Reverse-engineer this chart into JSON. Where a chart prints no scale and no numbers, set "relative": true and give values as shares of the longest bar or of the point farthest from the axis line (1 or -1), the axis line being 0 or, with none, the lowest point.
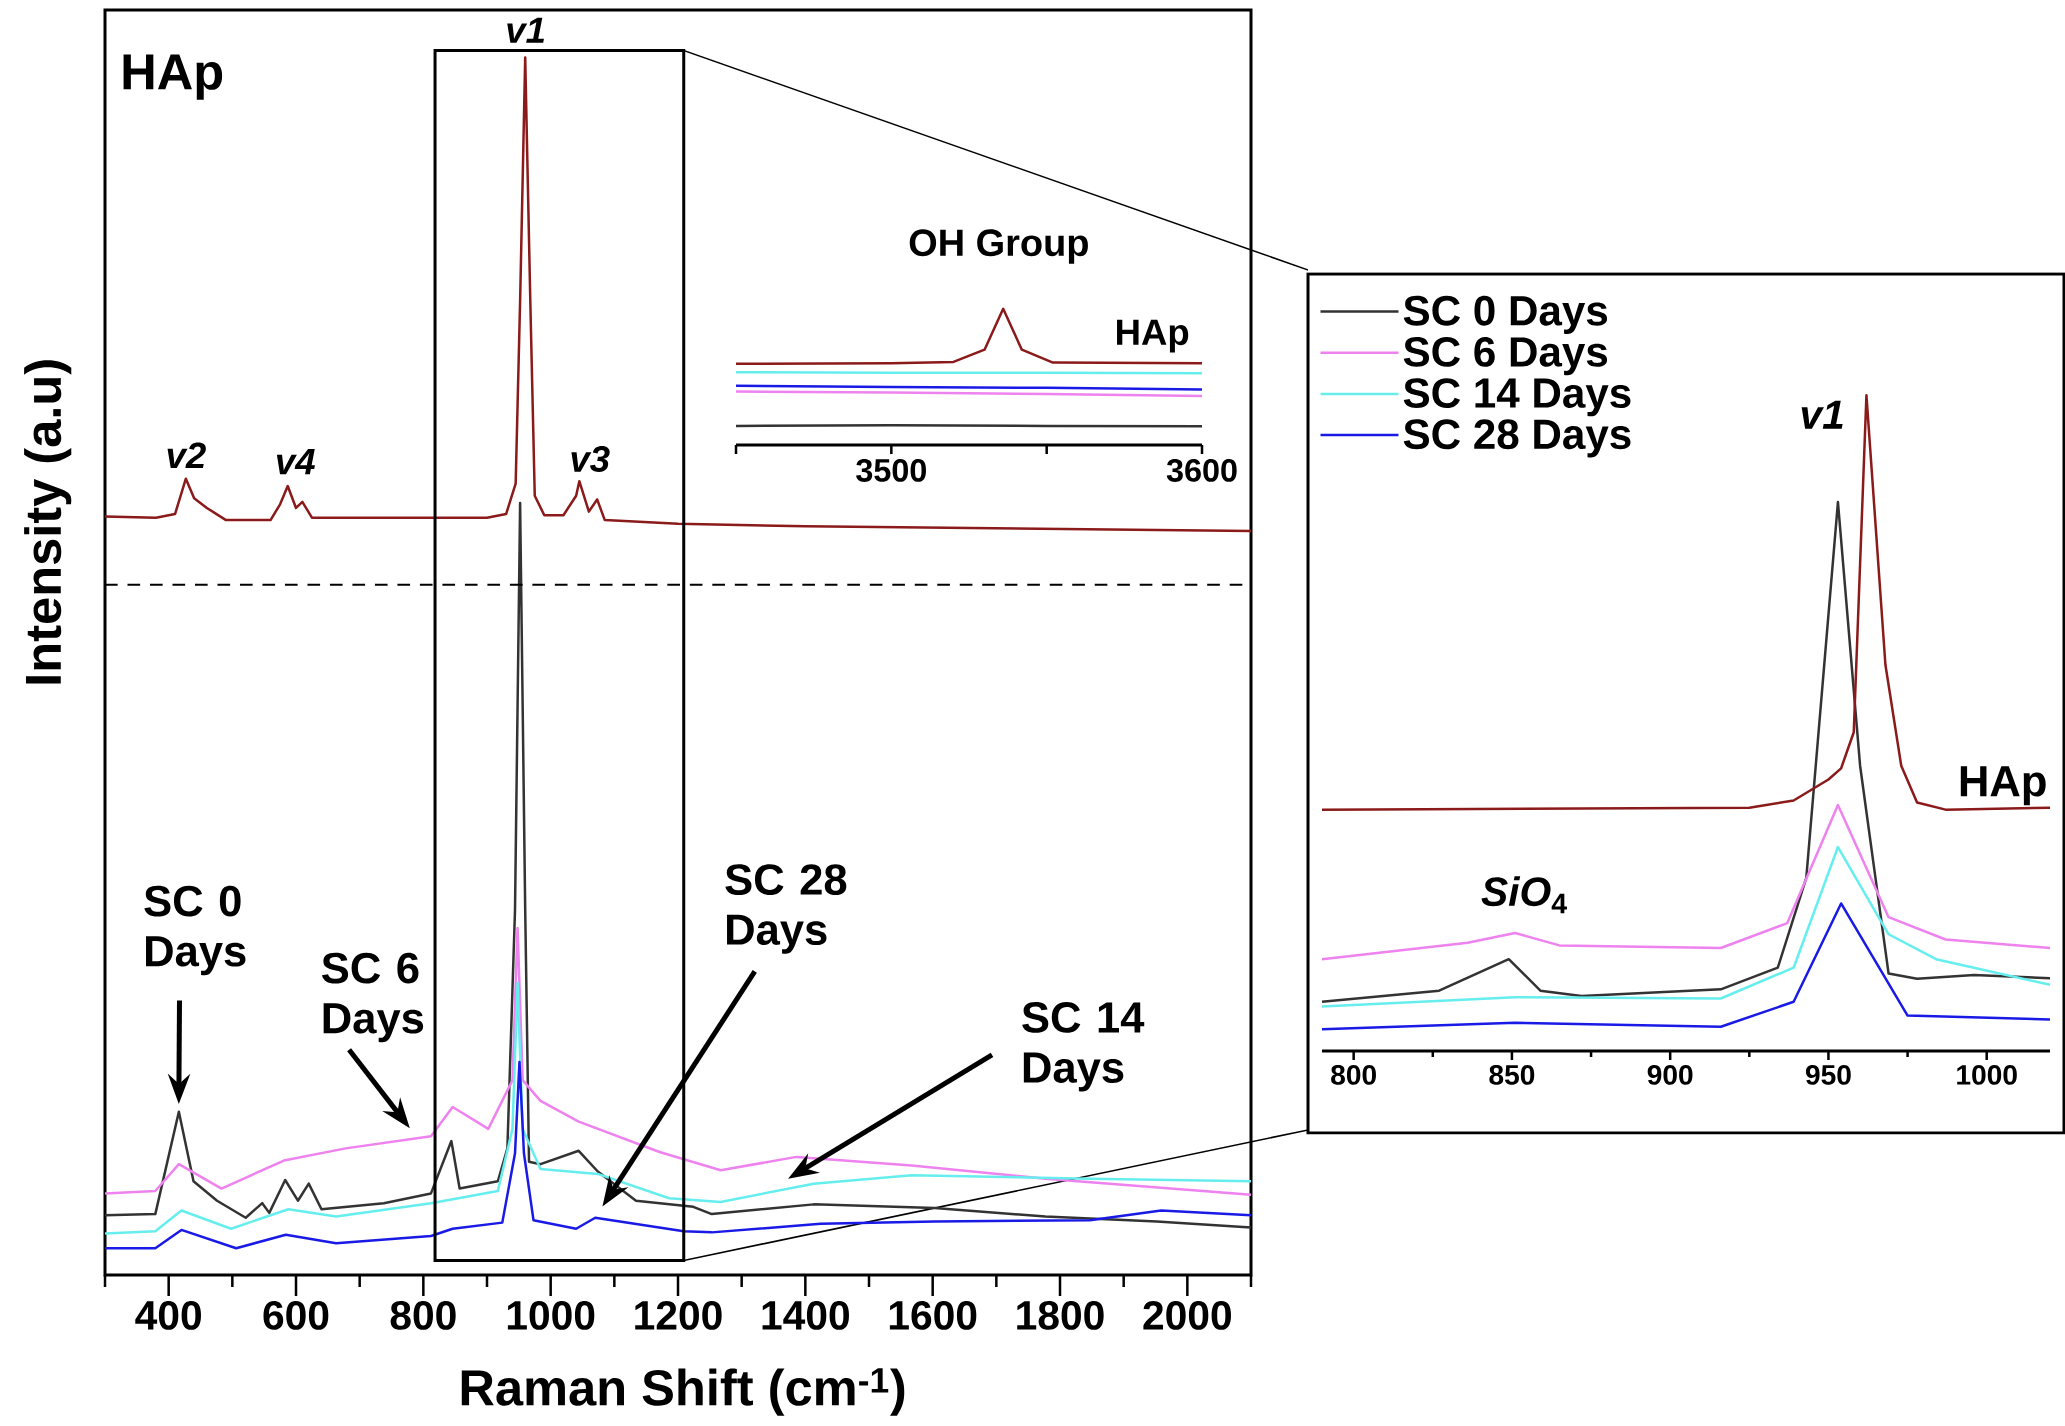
{
  "chart_data": [
    {
      "type": "line",
      "relative": true,
      "xlabel": "Raman Shift (cm$^{-1}$)",
      "ylabel": "Intensity (a.u)",
      "xlim": [
        300,
        2100
      ],
      "xticks": [
        {
          "value": 300,
          "label": null
        },
        400,
        {
          "value": 500,
          "label": null
        },
        600,
        {
          "value": 700,
          "label": null
        },
        800,
        {
          "value": 900,
          "label": null
        },
        1000,
        {
          "value": 1100,
          "label": null
        },
        1200,
        {
          "value": 1300,
          "label": null
        },
        1400,
        {
          "value": 1500,
          "label": null
        },
        1600,
        {
          "value": 1700,
          "label": null
        },
        1800,
        {
          "value": 1900,
          "label": null
        },
        2000,
        {
          "value": 2100,
          "label": null
        }
      ],
      "series": [
        {
          "color": "#8b1a1a",
          "x": [
            300,
            380,
            410,
            427,
            440,
            460,
            490,
            560,
            575,
            587,
            600,
            610,
            625,
            700,
            900,
            930,
            945,
            952,
            960,
            968,
            975,
            990,
            1020,
            1030,
            1040,
            1045,
            1060,
            1073,
            1085,
            1200,
            1400,
            2100
          ],
          "values": [
            0.623,
            0.622,
            0.625,
            0.654,
            0.638,
            0.63,
            0.62,
            0.62,
            0.633,
            0.648,
            0.63,
            0.635,
            0.622,
            0.622,
            0.622,
            0.625,
            0.65,
            0.8,
            1,
            0.8,
            0.64,
            0.624,
            0.624,
            0.632,
            0.64,
            0.652,
            0.627,
            0.637,
            0.62,
            0.617,
            0.615,
            0.611
          ]
        },
        {
          "color": "#333333",
          "x": [
            300,
            379,
            416,
            439,
            476,
            521,
            547,
            558,
            583,
            603,
            620,
            640,
            738,
            812,
            844,
            857,
            917,
            932,
            944,
            952,
            960,
            966,
            984,
            1044,
            1074,
            1134,
            1224,
            1253,
            1413,
            1603,
            1777,
            1952,
            2100
          ],
          "values": [
            0.049,
            0.05,
            0.134,
            0.077,
            0.061,
            0.047,
            0.059,
            0.051,
            0.078,
            0.061,
            0.075,
            0.054,
            0.059,
            0.067,
            0.11,
            0.071,
            0.077,
            0.104,
            0.3,
            0.634,
            0.3,
            0.093,
            0.091,
            0.102,
            0.085,
            0.061,
            0.056,
            0.05,
            0.058,
            0.055,
            0.048,
            0.044,
            0.039
          ]
        },
        {
          "color": "#ee82ee",
          "x": [
            300,
            379,
            416,
            483,
            581,
            678,
            812,
            846,
            902,
            940,
            948,
            956,
            984,
            1044,
            1171,
            1267,
            1386,
            1567,
            1777,
            2100
          ],
          "values": [
            0.067,
            0.069,
            0.091,
            0.071,
            0.094,
            0.104,
            0.114,
            0.138,
            0.12,
            0.16,
            0.285,
            0.16,
            0.143,
            0.126,
            0.101,
            0.086,
            0.097,
            0.09,
            0.079,
            0.066
          ]
        },
        {
          "color": "#66eeee",
          "x": [
            300,
            379,
            420,
            498,
            588,
            663,
            812,
            917,
            940,
            948,
            956,
            984,
            1074,
            1186,
            1267,
            1413,
            1567,
            1847,
            2100
          ],
          "values": [
            0.034,
            0.036,
            0.053,
            0.038,
            0.054,
            0.048,
            0.059,
            0.069,
            0.12,
            0.24,
            0.12,
            0.087,
            0.083,
            0.063,
            0.06,
            0.075,
            0.082,
            0.079,
            0.077
          ]
        },
        {
          "color": "#1a1ae6",
          "x": [
            300,
            379,
            420,
            506,
            584,
            663,
            812,
            846,
            924,
            944,
            951,
            958,
            973,
            1040,
            1070,
            1209,
            1253,
            1424,
            1603,
            1847,
            1959,
            2100
          ],
          "values": [
            0.022,
            0.022,
            0.037,
            0.022,
            0.033,
            0.026,
            0.032,
            0.038,
            0.043,
            0.1,
            0.175,
            0.1,
            0.045,
            0.038,
            0.047,
            0.036,
            0.035,
            0.042,
            0.044,
            0.045,
            0.053,
            0.049
          ]
        }
      ],
      "ref_lines": [
        {
          "axis": "y",
          "value": 0.567,
          "line_style": "dashed"
        }
      ],
      "annotations": [
        "HAp",
        "v2",
        "v4",
        "v1",
        "v3",
        "SC 0 Days",
        "SC 6 Days",
        "SC 28 Days",
        "SC 14 Days"
      ]
    },
    {
      "type": "line",
      "relative": true,
      "title": "OH Group",
      "xlim": [
        3450,
        3600
      ],
      "xticks": [
        {
          "value": 3450,
          "label": null
        },
        3500,
        {
          "value": 3550,
          "label": null
        },
        3600
      ],
      "series": [
        {
          "color": "#8b1a1a",
          "x": [
            3450,
            3500,
            3520,
            3530,
            3536,
            3542,
            3552,
            3600
          ],
          "values": [
            0.596,
            0.6,
            0.61,
            0.7,
            1,
            0.7,
            0.605,
            0.6
          ]
        },
        {
          "color": "#333333",
          "x": [
            3450,
            3500,
            3550,
            3600
          ],
          "values": [
            0.14,
            0.145,
            0.14,
            0.138
          ]
        },
        {
          "color": "#ee82ee",
          "x": [
            3450,
            3500,
            3550,
            3600
          ],
          "values": [
            0.393,
            0.385,
            0.375,
            0.359
          ]
        },
        {
          "color": "#66eeee",
          "x": [
            3450,
            3500,
            3550,
            3600
          ],
          "values": [
            0.534,
            0.53,
            0.53,
            0.527
          ]
        },
        {
          "color": "#1a1ae6",
          "x": [
            3450,
            3500,
            3550,
            3600
          ],
          "values": [
            0.435,
            0.425,
            0.42,
            0.407
          ]
        }
      ],
      "annotations": [
        "HAp"
      ]
    },
    {
      "type": "line",
      "relative": true,
      "legend": "top left",
      "xlim": [
        790,
        1020
      ],
      "xticks": [
        800,
        {
          "value": 825,
          "label": null
        },
        850,
        {
          "value": 875,
          "label": null
        },
        900,
        {
          "value": 925,
          "label": null
        },
        950,
        {
          "value": 975,
          "label": null
        },
        1000
      ],
      "series": [
        {
          "name": "SC 0 Days",
          "color": "#333333",
          "x": [
            790,
            827,
            849,
            859,
            872,
            916,
            934,
            943,
            953,
            960,
            969,
            978,
            996,
            1020
          ],
          "values": [
            0.075,
            0.092,
            0.14,
            0.092,
            0.084,
            0.094,
            0.127,
            0.264,
            0.837,
            0.435,
            0.118,
            0.11,
            0.116,
            0.111
          ]
        },
        {
          "name": "SC 6 Days",
          "color": "#ee82ee",
          "x": [
            790,
            836,
            851,
            865,
            916,
            937,
            953,
            969,
            987,
            1020
          ],
          "values": [
            0.14,
            0.165,
            0.18,
            0.161,
            0.157,
            0.195,
            0.375,
            0.204,
            0.17,
            0.157
          ]
        },
        {
          "name": "SC 14 Days",
          "color": "#66eeee",
          "x": [
            790,
            851,
            916,
            939,
            953,
            969,
            984,
            1020
          ],
          "values": [
            0.068,
            0.082,
            0.08,
            0.127,
            0.311,
            0.178,
            0.14,
            0.101
          ]
        },
        {
          "name": "SC 28 Days",
          "color": "#1a1ae6",
          "x": [
            790,
            851,
            916,
            939,
            954,
            975,
            1020
          ],
          "values": [
            0.033,
            0.043,
            0.037,
            0.075,
            0.225,
            0.054,
            0.048
          ]
        },
        {
          "color": "#8b1a1a",
          "x": [
            790,
            925,
            939,
            950,
            954,
            958,
            962,
            968,
            973,
            978,
            987,
            1020
          ],
          "values": [
            0.368,
            0.371,
            0.382,
            0.414,
            0.431,
            0.486,
            1,
            0.589,
            0.435,
            0.379,
            0.368,
            0.371
          ]
        }
      ],
      "annotations": [
        "v1",
        "HAp",
        "*SiO*$_{4}$"
      ]
    }
  ]
}
